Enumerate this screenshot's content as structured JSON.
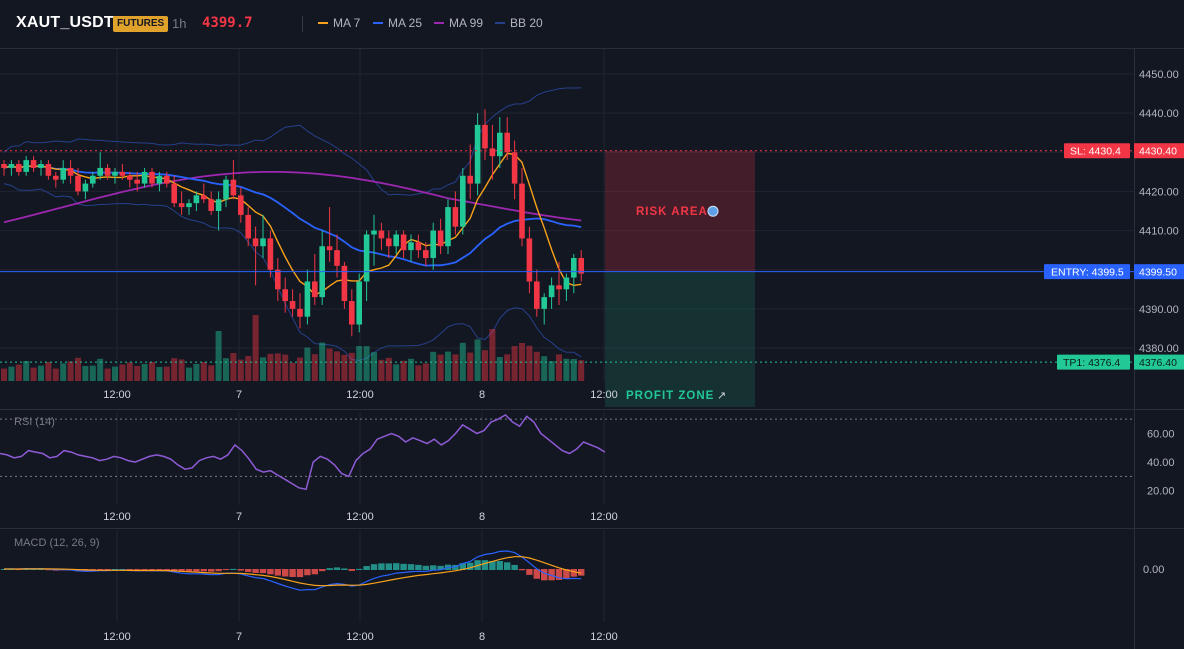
{
  "header": {
    "symbol": "XAUT_USDT",
    "badge": "FUTURES",
    "interval": "1h",
    "last_price": "4399.7",
    "legend": [
      {
        "label": "MA 7",
        "color": "#f7a21b"
      },
      {
        "label": "MA 25",
        "color": "#2962ff"
      },
      {
        "label": "MA 99",
        "color": "#9c27b0"
      },
      {
        "label": "BB 20",
        "color": "#1e3a8a"
      }
    ]
  },
  "colors": {
    "up": "#22c896",
    "down": "#f23645",
    "ma7": "#f7a21b",
    "ma25": "#2962ff",
    "ma99": "#9c27b0",
    "bb": "#26408b",
    "rsi": "#8e5bd6",
    "macd": "#2962ff",
    "signal": "#f7a21b"
  },
  "price_axis": [
    "4450.00",
    "4440.00",
    "4430.00",
    "4420.00",
    "4410.00",
    "4400.00",
    "4390.00",
    "4380.00"
  ],
  "time_axis": [
    "12:00",
    "7",
    "12:00",
    "8",
    "12:00"
  ],
  "trade": {
    "sl_tag": "SL: 4430.4",
    "sl_price": "4430.40",
    "entry_tag": "ENTRY: 4399.5",
    "entry_price": "4399.50",
    "tp_tag": "TP1: 4376.4",
    "tp_price": "4376.40",
    "risk_label": "RISK AREA",
    "profit_label": "PROFIT ZONE",
    "sl": 4430.4,
    "entry": 4399.5,
    "tp": 4376.4
  },
  "rsi": {
    "title": "RSI (14)",
    "axis": [
      "60.00",
      "40.00",
      "20.00"
    ],
    "values": [
      46,
      45,
      43,
      44,
      48,
      47,
      46,
      43,
      44,
      48,
      47,
      45,
      44,
      43,
      41,
      42,
      44,
      43,
      41,
      40,
      42,
      44,
      45,
      44,
      42,
      38,
      35,
      36,
      41,
      43,
      44,
      42,
      45,
      52,
      48,
      42,
      35,
      33,
      34,
      31,
      28,
      25,
      22,
      21,
      40,
      44,
      42,
      38,
      32,
      30,
      41,
      46,
      49,
      56,
      58,
      60,
      58,
      54,
      57,
      55,
      53,
      56,
      52,
      55,
      60,
      66,
      63,
      60,
      62,
      68,
      70,
      73,
      68,
      65,
      72,
      68,
      60,
      56,
      52,
      48,
      46,
      49,
      54,
      52,
      50,
      47
    ],
    "ylim": [
      10,
      75
    ],
    "levels": [
      70,
      30
    ]
  },
  "macd": {
    "title": "MACD (12, 26, 9)",
    "axis": [
      "0.00"
    ]
  },
  "candles": [
    [
      4427,
      4428,
      4424,
      4426
    ],
    [
      4426,
      4428,
      4424,
      4427
    ],
    [
      4427,
      4428,
      4424,
      4425
    ],
    [
      4425,
      4429,
      4424,
      4428
    ],
    [
      4428,
      4429,
      4425,
      4426
    ],
    [
      4426,
      4428,
      4424,
      4427
    ],
    [
      4427,
      4428,
      4423,
      4424
    ],
    [
      4424,
      4425,
      4421,
      4423
    ],
    [
      4423,
      4428,
      4422,
      4426
    ],
    [
      4426,
      4428,
      4422,
      4424
    ],
    [
      4424,
      4426,
      4419,
      4420
    ],
    [
      4420,
      4423,
      4418,
      4422
    ],
    [
      4422,
      4425,
      4421,
      4424
    ],
    [
      4424,
      4430,
      4423,
      4426
    ],
    [
      4426,
      4427,
      4423,
      4424
    ],
    [
      4424,
      4426,
      4422,
      4425
    ],
    [
      4425,
      4427,
      4423,
      4424
    ],
    [
      4424,
      4425,
      4421,
      4423
    ],
    [
      4423,
      4425,
      4420,
      4422
    ],
    [
      4422,
      4426,
      4421,
      4425
    ],
    [
      4425,
      4426,
      4421,
      4422
    ],
    [
      4422,
      4425,
      4420,
      4424
    ],
    [
      4424,
      4425,
      4421,
      4422
    ],
    [
      4422,
      4424,
      4416,
      4417
    ],
    [
      4417,
      4420,
      4414,
      4416
    ],
    [
      4416,
      4418,
      4414,
      4417
    ],
    [
      4417,
      4420,
      4415,
      4419
    ],
    [
      4419,
      4422,
      4417,
      4418
    ],
    [
      4418,
      4420,
      4414,
      4415
    ],
    [
      4415,
      4420,
      4410,
      4418
    ],
    [
      4418,
      4424,
      4416,
      4423
    ],
    [
      4423,
      4428,
      4418,
      4419
    ],
    [
      4419,
      4421,
      4412,
      4414
    ],
    [
      4414,
      4416,
      4406,
      4408
    ],
    [
      4408,
      4411,
      4396,
      4406
    ],
    [
      4406,
      4414,
      4403,
      4408
    ],
    [
      4408,
      4410,
      4398,
      4400
    ],
    [
      4400,
      4403,
      4392,
      4395
    ],
    [
      4395,
      4398,
      4389,
      4392
    ],
    [
      4392,
      4395,
      4388,
      4390
    ],
    [
      4390,
      4394,
      4385,
      4388
    ],
    [
      4388,
      4400,
      4386,
      4397
    ],
    [
      4397,
      4404,
      4391,
      4393
    ],
    [
      4393,
      4410,
      4391,
      4406
    ],
    [
      4406,
      4416,
      4402,
      4405
    ],
    [
      4405,
      4409,
      4398,
      4401
    ],
    [
      4401,
      4402,
      4390,
      4392
    ],
    [
      4392,
      4395,
      4383,
      4386
    ],
    [
      4386,
      4399,
      4384,
      4397
    ],
    [
      4397,
      4410,
      4392,
      4409
    ],
    [
      4409,
      4414,
      4401,
      4410
    ],
    [
      4410,
      4412,
      4405,
      4408
    ],
    [
      4408,
      4410,
      4403,
      4406
    ],
    [
      4406,
      4410,
      4404,
      4409
    ],
    [
      4409,
      4410,
      4403,
      4405
    ],
    [
      4405,
      4409,
      4402,
      4407
    ],
    [
      4407,
      4409,
      4403,
      4405
    ],
    [
      4405,
      4407,
      4401,
      4403
    ],
    [
      4403,
      4412,
      4400,
      4410
    ],
    [
      4410,
      4413,
      4404,
      4406
    ],
    [
      4406,
      4418,
      4404,
      4416
    ],
    [
      4416,
      4420,
      4409,
      4411
    ],
    [
      4411,
      4426,
      4409,
      4424
    ],
    [
      4424,
      4432,
      4418,
      4422
    ],
    [
      4422,
      4440,
      4419,
      4437
    ],
    [
      4437,
      4441,
      4428,
      4431
    ],
    [
      4431,
      4437,
      4423,
      4429
    ],
    [
      4429,
      4439,
      4426,
      4435
    ],
    [
      4435,
      4439,
      4428,
      4430
    ],
    [
      4430,
      4433,
      4418,
      4422
    ],
    [
      4422,
      4426,
      4406,
      4408
    ],
    [
      4408,
      4411,
      4394,
      4397
    ],
    [
      4397,
      4400,
      4388,
      4390
    ],
    [
      4390,
      4394,
      4386,
      4393
    ],
    [
      4393,
      4398,
      4390,
      4396
    ],
    [
      4396,
      4402,
      4391,
      4395
    ],
    [
      4395,
      4399,
      4392,
      4398
    ],
    [
      4398,
      4404,
      4394,
      4403
    ],
    [
      4403,
      4405,
      4397,
      4399
    ]
  ]
}
